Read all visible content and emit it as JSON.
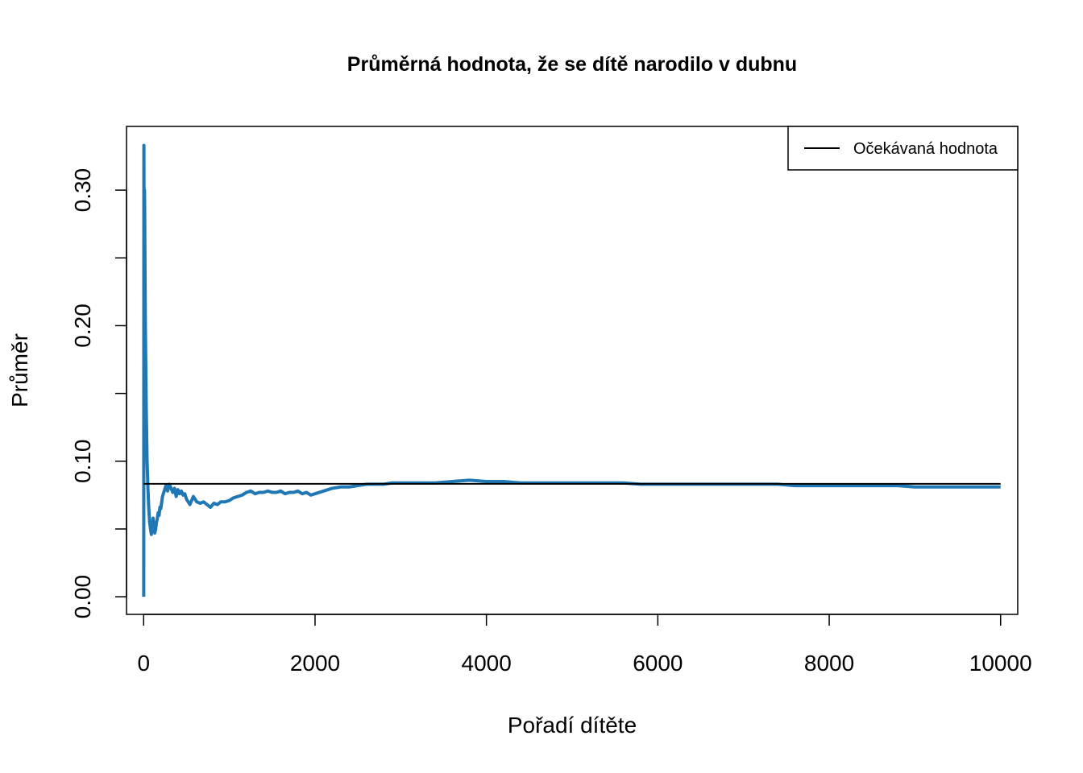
{
  "chart_data": {
    "type": "line",
    "title": "Průměrná hodnota, že se dítě narodilo v dubnu",
    "xlabel": "Pořadí dítěte",
    "ylabel": "Průměr",
    "xlim": [
      -200,
      10200
    ],
    "ylim": [
      -0.013,
      0.347
    ],
    "x_ticks": [
      0,
      2000,
      4000,
      6000,
      8000,
      10000
    ],
    "x_tick_labels": [
      "0",
      "2000",
      "4000",
      "6000",
      "8000",
      "10000"
    ],
    "y_ticks": [
      0.0,
      0.05,
      0.1,
      0.15,
      0.2,
      0.25,
      0.3
    ],
    "y_tick_labels": [
      "0.00",
      "",
      "0.10",
      "",
      "0.20",
      "",
      "0.30"
    ],
    "grid": false,
    "legend_position": "top-right",
    "series": [
      {
        "name": "",
        "color": "#1f77b4",
        "x": [
          1,
          3,
          6,
          8,
          10,
          12,
          15,
          20,
          25,
          30,
          40,
          50,
          60,
          70,
          80,
          90,
          100,
          110,
          120,
          130,
          140,
          150,
          160,
          170,
          180,
          190,
          200,
          220,
          240,
          260,
          280,
          300,
          320,
          340,
          360,
          380,
          400,
          420,
          440,
          460,
          480,
          500,
          540,
          580,
          620,
          660,
          700,
          740,
          780,
          820,
          860,
          900,
          950,
          1000,
          1050,
          1100,
          1150,
          1200,
          1250,
          1300,
          1350,
          1400,
          1450,
          1500,
          1550,
          1600,
          1650,
          1700,
          1750,
          1800,
          1850,
          1900,
          1950,
          2000,
          2100,
          2200,
          2300,
          2400,
          2500,
          2600,
          2700,
          2800,
          2900,
          3000,
          3200,
          3400,
          3600,
          3800,
          4000,
          4200,
          4400,
          4600,
          4800,
          5000,
          5200,
          5400,
          5600,
          5800,
          6000,
          6200,
          6400,
          6600,
          6800,
          7000,
          7200,
          7400,
          7600,
          7800,
          8000,
          8200,
          8400,
          8600,
          8800,
          9000,
          9200,
          9400,
          9600,
          9800,
          10000
        ],
        "values": [
          0.0,
          0.333,
          0.25,
          0.25,
          0.3,
          0.285,
          0.25,
          0.2,
          0.17,
          0.14,
          0.1,
          0.08,
          0.065,
          0.055,
          0.05,
          0.046,
          0.052,
          0.058,
          0.05,
          0.047,
          0.05,
          0.055,
          0.058,
          0.062,
          0.06,
          0.066,
          0.065,
          0.074,
          0.078,
          0.082,
          0.078,
          0.083,
          0.08,
          0.077,
          0.08,
          0.074,
          0.079,
          0.076,
          0.078,
          0.075,
          0.076,
          0.072,
          0.068,
          0.074,
          0.07,
          0.069,
          0.07,
          0.068,
          0.066,
          0.069,
          0.068,
          0.07,
          0.07,
          0.071,
          0.073,
          0.074,
          0.075,
          0.077,
          0.078,
          0.076,
          0.077,
          0.077,
          0.078,
          0.077,
          0.077,
          0.078,
          0.076,
          0.077,
          0.077,
          0.078,
          0.076,
          0.077,
          0.075,
          0.076,
          0.078,
          0.08,
          0.081,
          0.081,
          0.082,
          0.083,
          0.083,
          0.083,
          0.084,
          0.084,
          0.084,
          0.084,
          0.085,
          0.086,
          0.085,
          0.085,
          0.084,
          0.084,
          0.084,
          0.084,
          0.084,
          0.084,
          0.084,
          0.083,
          0.083,
          0.083,
          0.083,
          0.083,
          0.083,
          0.083,
          0.083,
          0.083,
          0.082,
          0.082,
          0.082,
          0.082,
          0.082,
          0.082,
          0.082,
          0.081,
          0.081,
          0.081,
          0.081,
          0.081,
          0.081
        ]
      },
      {
        "name": "Očekávaná hodnota",
        "color": "#000000",
        "x": [
          1,
          10000
        ],
        "values": [
          0.0833,
          0.0833
        ]
      }
    ],
    "legend": [
      {
        "label": "Očekávaná hodnota",
        "color": "#000000"
      }
    ]
  }
}
